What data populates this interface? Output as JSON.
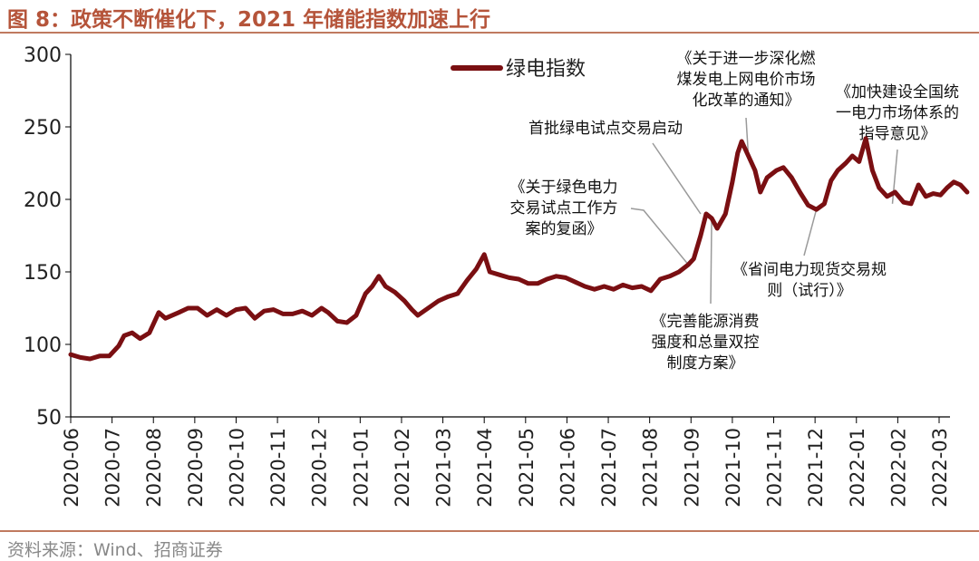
{
  "figure": {
    "title": "图 8：政策不断催化下，2021 年储能指数加速上行",
    "source": "资料来源：Wind、招商证券",
    "colors": {
      "title": "#b5543a",
      "rule": "#c07a5f",
      "series": "#7a0f12",
      "source": "#888888"
    }
  },
  "chart_data": {
    "type": "line",
    "title": "",
    "xlabel": "",
    "ylabel": "",
    "ylim": [
      50,
      300
    ],
    "yticks": [
      "50",
      "100",
      "150",
      "200",
      "250",
      "300"
    ],
    "xticks": [
      "2020-06",
      "2020-07",
      "2020-08",
      "2020-09",
      "2020-10",
      "2020-11",
      "2020-12",
      "2021-01",
      "2021-02",
      "2021-03",
      "2021-04",
      "2021-05",
      "2021-06",
      "2021-07",
      "2021-08",
      "2021-09",
      "2021-10",
      "2021-11",
      "2021-12",
      "2022-01",
      "2022-02",
      "2022-03"
    ],
    "grid": false,
    "legend_position": "top-left",
    "series": [
      {
        "name": "绿电指数",
        "color": "#7a0f12",
        "points": [
          [
            "2020-06-01",
            93
          ],
          [
            "2020-06-08",
            91
          ],
          [
            "2020-06-15",
            90
          ],
          [
            "2020-06-22",
            92
          ],
          [
            "2020-06-29",
            92
          ],
          [
            "2020-07-06",
            99
          ],
          [
            "2020-07-10",
            106
          ],
          [
            "2020-07-16",
            108
          ],
          [
            "2020-07-22",
            104
          ],
          [
            "2020-07-29",
            108
          ],
          [
            "2020-08-05",
            122
          ],
          [
            "2020-08-10",
            118
          ],
          [
            "2020-08-20",
            122
          ],
          [
            "2020-08-27",
            125
          ],
          [
            "2020-09-03",
            125
          ],
          [
            "2020-09-10",
            120
          ],
          [
            "2020-09-17",
            124
          ],
          [
            "2020-09-24",
            120
          ],
          [
            "2020-10-01",
            124
          ],
          [
            "2020-10-08",
            125
          ],
          [
            "2020-10-15",
            118
          ],
          [
            "2020-10-22",
            123
          ],
          [
            "2020-10-29",
            124
          ],
          [
            "2020-11-05",
            121
          ],
          [
            "2020-11-12",
            121
          ],
          [
            "2020-11-19",
            123
          ],
          [
            "2020-11-26",
            120
          ],
          [
            "2020-12-03",
            125
          ],
          [
            "2020-12-08",
            122
          ],
          [
            "2020-12-15",
            116
          ],
          [
            "2020-12-22",
            115
          ],
          [
            "2020-12-29",
            120
          ],
          [
            "2021-01-05",
            135
          ],
          [
            "2021-01-10",
            140
          ],
          [
            "2021-01-15",
            147
          ],
          [
            "2021-01-20",
            140
          ],
          [
            "2021-01-27",
            136
          ],
          [
            "2021-02-03",
            130
          ],
          [
            "2021-02-08",
            124
          ],
          [
            "2021-02-12",
            120
          ],
          [
            "2021-02-19",
            125
          ],
          [
            "2021-02-26",
            130
          ],
          [
            "2021-03-05",
            133
          ],
          [
            "2021-03-12",
            135
          ],
          [
            "2021-03-19",
            144
          ],
          [
            "2021-03-26",
            152
          ],
          [
            "2021-04-01",
            162
          ],
          [
            "2021-04-05",
            150
          ],
          [
            "2021-04-12",
            148
          ],
          [
            "2021-04-19",
            146
          ],
          [
            "2021-04-26",
            145
          ],
          [
            "2021-05-03",
            142
          ],
          [
            "2021-05-10",
            142
          ],
          [
            "2021-05-17",
            145
          ],
          [
            "2021-05-24",
            147
          ],
          [
            "2021-05-31",
            146
          ],
          [
            "2021-06-07",
            143
          ],
          [
            "2021-06-14",
            140
          ],
          [
            "2021-06-21",
            138
          ],
          [
            "2021-06-28",
            140
          ],
          [
            "2021-07-05",
            138
          ],
          [
            "2021-07-12",
            141
          ],
          [
            "2021-07-19",
            139
          ],
          [
            "2021-07-26",
            140
          ],
          [
            "2021-08-02",
            137
          ],
          [
            "2021-08-09",
            145
          ],
          [
            "2021-08-16",
            147
          ],
          [
            "2021-08-23",
            150
          ],
          [
            "2021-08-30",
            155
          ],
          [
            "2021-09-03",
            159
          ],
          [
            "2021-09-08",
            175
          ],
          [
            "2021-09-12",
            190
          ],
          [
            "2021-09-16",
            187
          ],
          [
            "2021-09-20",
            180
          ],
          [
            "2021-09-26",
            190
          ],
          [
            "2021-10-01",
            212
          ],
          [
            "2021-10-05",
            232
          ],
          [
            "2021-10-08",
            240
          ],
          [
            "2021-10-13",
            230
          ],
          [
            "2021-10-18",
            220
          ],
          [
            "2021-10-22",
            205
          ],
          [
            "2021-10-27",
            215
          ],
          [
            "2021-11-03",
            220
          ],
          [
            "2021-11-08",
            222
          ],
          [
            "2021-11-14",
            215
          ],
          [
            "2021-11-20",
            205
          ],
          [
            "2021-11-26",
            196
          ],
          [
            "2021-12-02",
            193
          ],
          [
            "2021-12-08",
            197
          ],
          [
            "2021-12-13",
            213
          ],
          [
            "2021-12-18",
            220
          ],
          [
            "2021-12-24",
            225
          ],
          [
            "2021-12-29",
            230
          ],
          [
            "2022-01-03",
            226
          ],
          [
            "2022-01-08",
            242
          ],
          [
            "2022-01-13",
            220
          ],
          [
            "2022-01-18",
            208
          ],
          [
            "2022-01-24",
            202
          ],
          [
            "2022-01-30",
            205
          ],
          [
            "2022-02-05",
            198
          ],
          [
            "2022-02-10",
            197
          ],
          [
            "2022-02-15",
            210
          ],
          [
            "2022-02-20",
            202
          ],
          [
            "2022-02-25",
            204
          ],
          [
            "2022-03-02",
            203
          ],
          [
            "2022-03-07",
            208
          ],
          [
            "2022-03-12",
            212
          ],
          [
            "2022-03-17",
            210
          ],
          [
            "2022-03-22",
            205
          ]
        ]
      }
    ],
    "annotations": [
      {
        "lines": [
          "《关于进一步深化燃",
          "煤发电上网电价市场",
          "化改革的通知》"
        ],
        "target": [
          "2021-10-13",
          230
        ]
      },
      {
        "lines": [
          "《加快建设全国统",
          "一电力市场体系的",
          "指导意见》"
        ],
        "target": [
          "2022-01-28",
          197
        ]
      },
      {
        "lines": [
          "首批绿电试点交易启动"
        ],
        "target": [
          "2021-09-08",
          190
        ]
      },
      {
        "lines": [
          "《关于绿色电力",
          "交易试点工作方",
          "案的复函》"
        ],
        "target": [
          "2021-08-30",
          155
        ]
      },
      {
        "lines": [
          "《省间电力现货交易规",
          "则（试行）》"
        ],
        "target": [
          "2021-12-02",
          193
        ]
      },
      {
        "lines": [
          "《完善能源消费",
          "强度和总量双控",
          "制度方案》"
        ],
        "target": [
          "2021-09-16",
          187
        ]
      }
    ]
  }
}
